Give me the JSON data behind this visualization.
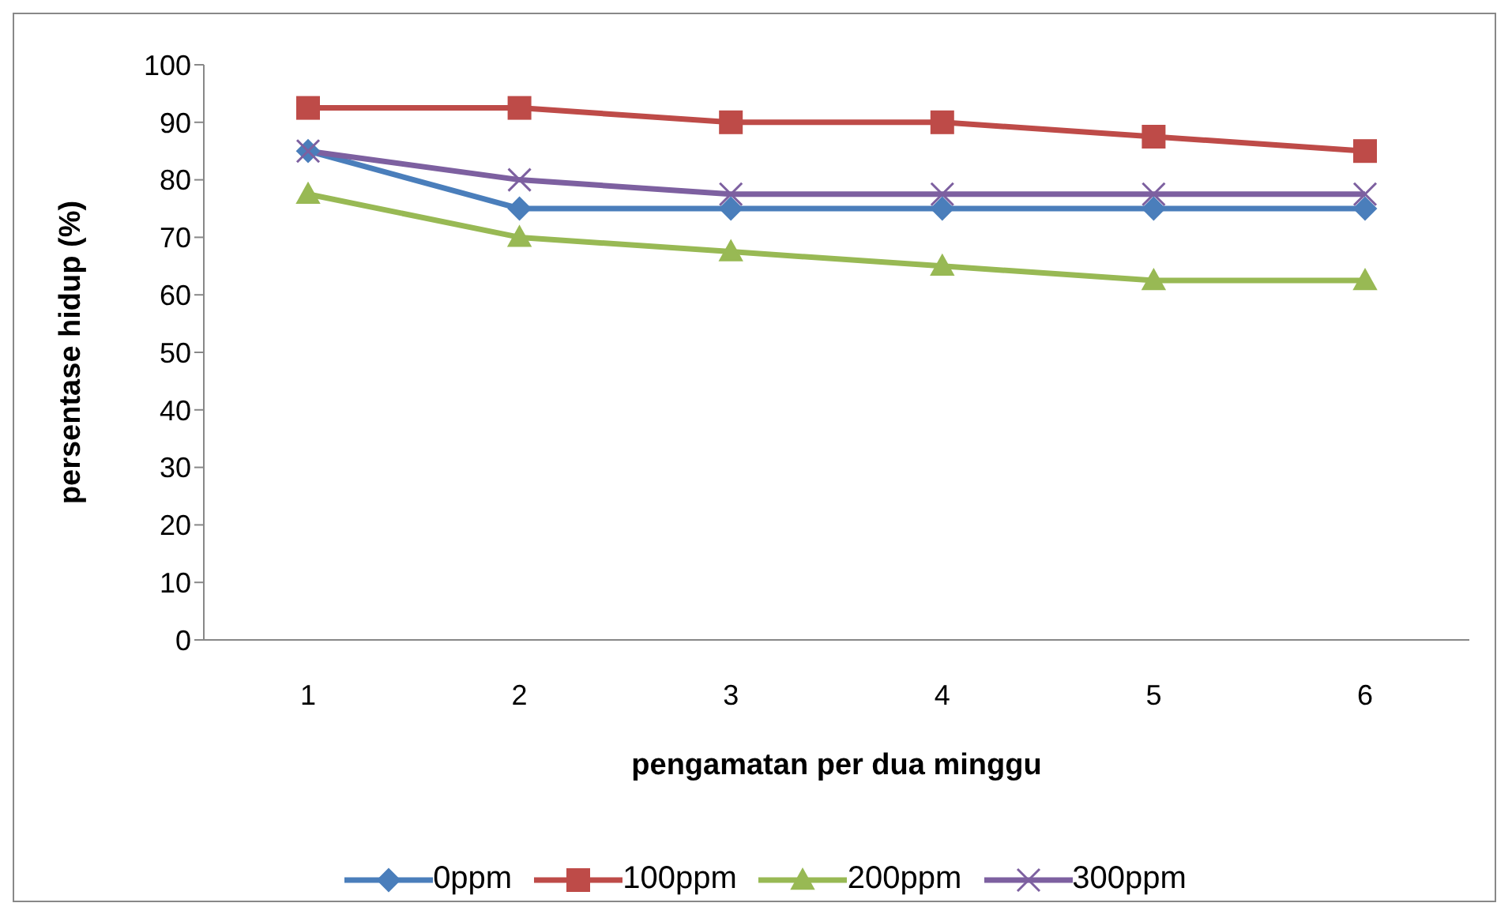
{
  "chart_data": {
    "type": "line",
    "xlabel": "pengamatan per dua minggu",
    "ylabel": "persentase hidup (%)",
    "categories": [
      "1",
      "2",
      "3",
      "4",
      "5",
      "6"
    ],
    "series": [
      {
        "name": "0ppm",
        "color": "#4a7ebb",
        "marker": "diamond",
        "values": [
          85,
          75,
          75,
          75,
          75,
          75
        ]
      },
      {
        "name": "100ppm",
        "color": "#be4b48",
        "marker": "square",
        "values": [
          92.5,
          92.5,
          90,
          90,
          87.5,
          85
        ]
      },
      {
        "name": "200ppm",
        "color": "#98b954",
        "marker": "triangle",
        "values": [
          77.5,
          70,
          67.5,
          65,
          62.5,
          62.5
        ]
      },
      {
        "name": "300ppm",
        "color": "#7d60a0",
        "marker": "cross",
        "values": [
          85,
          80,
          77.5,
          77.5,
          77.5,
          77.5
        ]
      }
    ],
    "ylim": [
      0,
      100
    ],
    "yticks": [
      0,
      10,
      20,
      30,
      40,
      50,
      60,
      70,
      80,
      90,
      100
    ],
    "grid": false,
    "legend": "bottom"
  }
}
